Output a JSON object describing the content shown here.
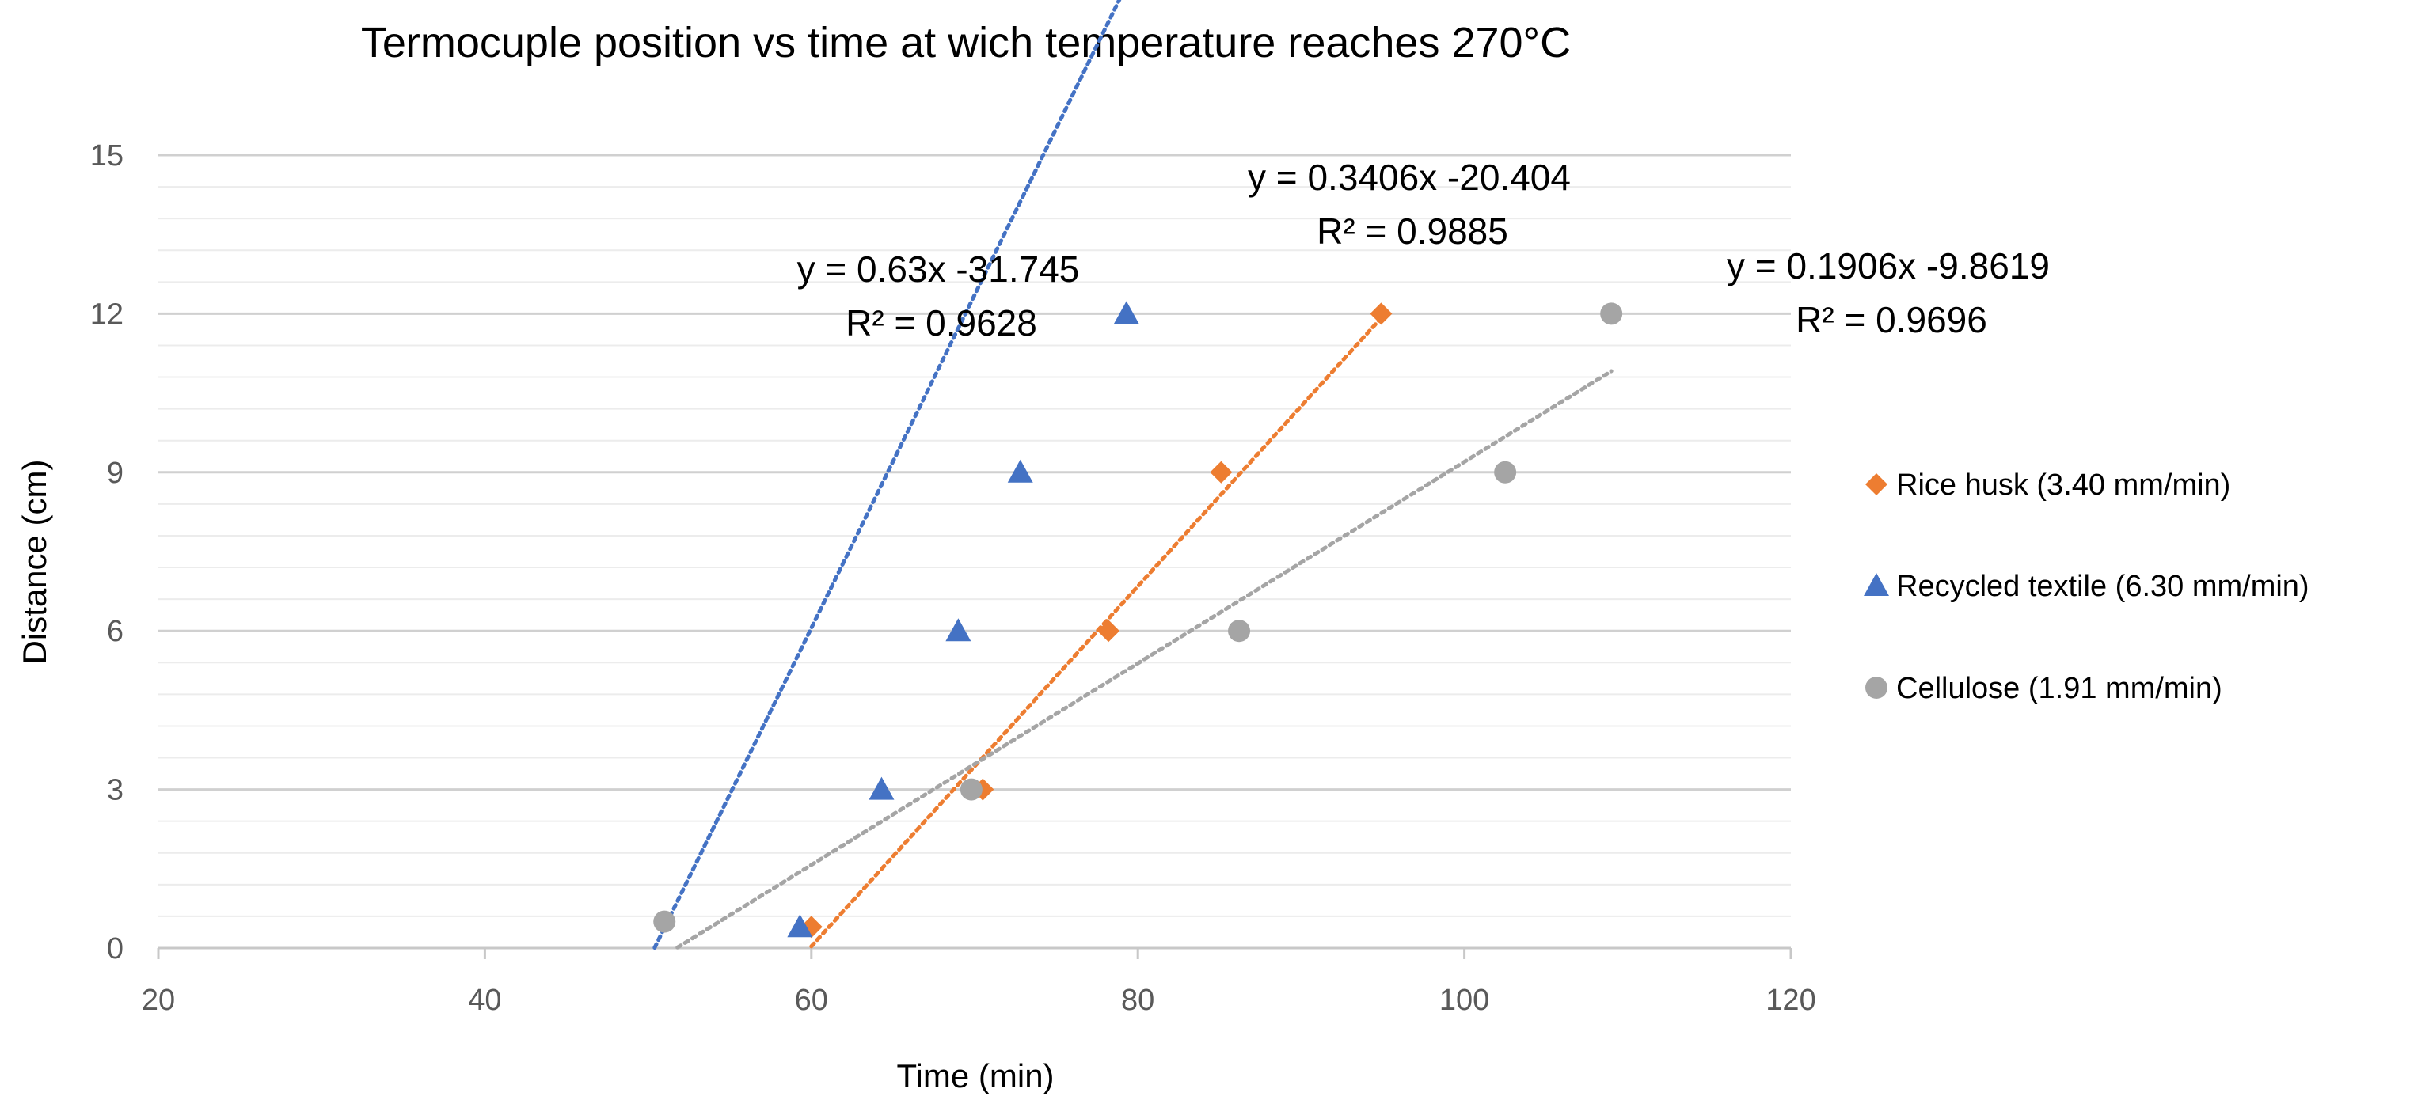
{
  "chart_data": {
    "type": "scatter",
    "title": "Termocuple position vs time at wich temperature reaches 270°C",
    "xlabel": "Time (min)",
    "ylabel": "Distance (cm)",
    "xlim": [
      20,
      120
    ],
    "ylim": [
      0,
      15
    ],
    "x_ticks": [
      "20",
      "40",
      "60",
      "80",
      "100",
      "120"
    ],
    "y_ticks": [
      "0",
      "3",
      "6",
      "9",
      "12",
      "15"
    ],
    "minor_gridlines_step": 0.6,
    "legend_position": "right",
    "series": [
      {
        "name": "Rice husk (3.40 mm/min)",
        "marker": "diamond",
        "color": "#ED7D31",
        "x": [
          60.0,
          70.5,
          78.2,
          85.1,
          94.9
        ],
        "y": [
          0.4,
          3,
          6,
          9,
          12
        ],
        "trendline": {
          "slope": 0.3406,
          "intercept": -20.404,
          "x_range": [
            60.0,
            95.0
          ]
        },
        "equation": "y = 0.3406x -20.404",
        "r_squared": "R² = 0.9885"
      },
      {
        "name": "Recycled textile (6.30 mm/min)",
        "marker": "triangle",
        "color": "#4472C4",
        "x": [
          59.3,
          64.3,
          69.0,
          72.8,
          79.3
        ],
        "y": [
          0.4,
          3,
          6,
          9,
          12
        ],
        "trendline": {
          "slope": 0.63,
          "intercept": -31.745,
          "x_range": [
            50.4,
            79.5
          ]
        },
        "equation": "y = 0.63x -31.745",
        "r_squared": "R² = 0.9628"
      },
      {
        "name": "Cellulose (1.91 mm/min)",
        "marker": "circle",
        "color": "#A5A5A5",
        "x": [
          51.0,
          69.8,
          86.2,
          102.5,
          109.0
        ],
        "y": [
          0.5,
          3,
          6,
          9,
          12
        ],
        "trendline": {
          "slope": 0.1906,
          "intercept": -9.8619,
          "x_range": [
            51.8,
            109.0
          ]
        },
        "equation": "y = 0.1906x -9.8619",
        "r_squared": "R² = 0.9696"
      }
    ]
  }
}
